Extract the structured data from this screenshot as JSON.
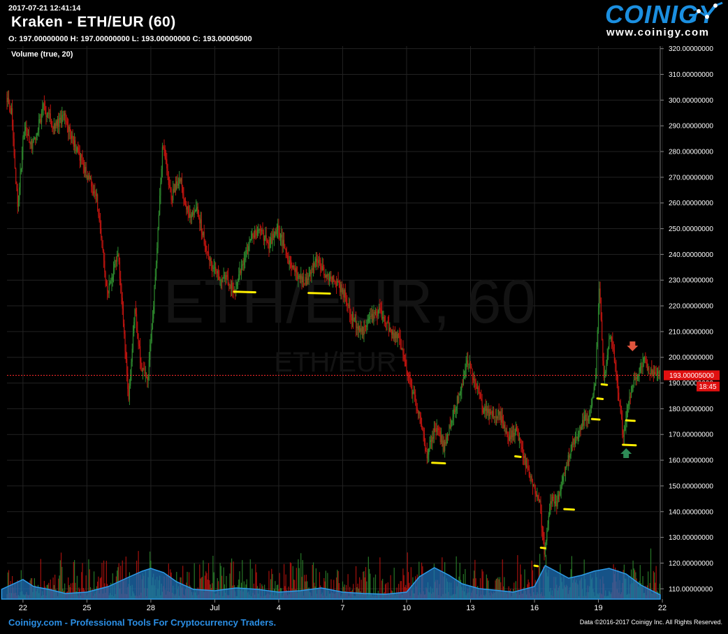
{
  "header": {
    "timestamp": "2017-07-21 12:41:14",
    "title": "Kraken - ETH/EUR (60)",
    "ohlc": "O: 197.00000000 H: 197.00000000 L: 193.00000000 C: 193.00005000",
    "volume_label": "Volume (true, 20)"
  },
  "logo": {
    "brand": "COINIGY",
    "url": "www.coinigy.com"
  },
  "footer": {
    "left": "Coinigy.com - Professional Tools For Cryptocurrency Traders.",
    "right": "Data ©2016-2017 Coinigy Inc. All Rights Reserved."
  },
  "watermark": {
    "main": "ETH/EUR, 60",
    "sub": "ETH/EUR"
  },
  "colors": {
    "up": "#2e8b2e",
    "down": "#c0140f",
    "accent": "#1b8fe0",
    "price_line": "#ff2a2a",
    "annotation": "#ffee00"
  },
  "chart_data": {
    "type": "candlestick",
    "title": "Kraken - ETH/EUR (60)",
    "ylim": [
      106,
      321
    ],
    "y_ticks": [
      "320.00000000",
      "310.00000000",
      "300.00000000",
      "290.00000000",
      "280.00000000",
      "270.00000000",
      "260.00000000",
      "250.00000000",
      "240.00000000",
      "230.00000000",
      "220.00000000",
      "210.00000000",
      "200.00000000",
      "190.00000000",
      "180.00000000",
      "170.00000000",
      "160.00000000",
      "150.00000000",
      "140.00000000",
      "130.00000000",
      "120.00000000",
      "110.00000000"
    ],
    "x_ticks": [
      {
        "label": "22",
        "day": 1
      },
      {
        "label": "25",
        "day": 4
      },
      {
        "label": "28",
        "day": 7
      },
      {
        "label": "Jul",
        "day": 10
      },
      {
        "label": "4",
        "day": 13
      },
      {
        "label": "7",
        "day": 16
      },
      {
        "label": "10",
        "day": 19
      },
      {
        "label": "13",
        "day": 22
      },
      {
        "label": "16",
        "day": 25
      },
      {
        "label": "19",
        "day": 28
      },
      {
        "label": "22",
        "day": 31
      }
    ],
    "x_range_days": [
      0.25,
      30.9
    ],
    "price_path": [
      [
        0.0,
        310
      ],
      [
        0.5,
        295
      ],
      [
        0.8,
        258
      ],
      [
        1.1,
        290
      ],
      [
        1.5,
        282
      ],
      [
        2.0,
        297
      ],
      [
        2.5,
        290
      ],
      [
        3.0,
        293
      ],
      [
        3.5,
        282
      ],
      [
        4.0,
        272
      ],
      [
        4.5,
        262
      ],
      [
        5.0,
        225
      ],
      [
        5.5,
        240
      ],
      [
        6.0,
        185
      ],
      [
        6.3,
        218
      ],
      [
        6.6,
        195
      ],
      [
        6.9,
        192
      ],
      [
        7.2,
        225
      ],
      [
        7.6,
        283
      ],
      [
        8.0,
        262
      ],
      [
        8.4,
        270
      ],
      [
        8.8,
        255
      ],
      [
        9.2,
        258
      ],
      [
        9.7,
        240
      ],
      [
        10.2,
        232
      ],
      [
        10.6,
        230
      ],
      [
        11.0,
        225
      ],
      [
        11.4,
        238
      ],
      [
        11.8,
        248
      ],
      [
        12.2,
        248
      ],
      [
        12.6,
        244
      ],
      [
        13.0,
        250
      ],
      [
        13.5,
        238
      ],
      [
        13.9,
        232
      ],
      [
        14.4,
        230
      ],
      [
        14.8,
        238
      ],
      [
        15.3,
        232
      ],
      [
        15.7,
        230
      ],
      [
        16.1,
        225
      ],
      [
        16.5,
        215
      ],
      [
        17.0,
        210
      ],
      [
        17.4,
        215
      ],
      [
        17.8,
        218
      ],
      [
        18.3,
        210
      ],
      [
        18.7,
        207
      ],
      [
        19.1,
        193
      ],
      [
        19.6,
        178
      ],
      [
        20.0,
        162
      ],
      [
        20.4,
        173
      ],
      [
        20.8,
        165
      ],
      [
        21.2,
        178
      ],
      [
        21.5,
        185
      ],
      [
        21.9,
        198
      ],
      [
        22.3,
        190
      ],
      [
        22.6,
        180
      ],
      [
        23.0,
        177
      ],
      [
        23.4,
        178
      ],
      [
        23.8,
        168
      ],
      [
        24.2,
        172
      ],
      [
        24.6,
        160
      ],
      [
        25.0,
        150
      ],
      [
        25.3,
        142
      ],
      [
        25.5,
        124
      ],
      [
        25.8,
        145
      ],
      [
        26.1,
        142
      ],
      [
        26.4,
        155
      ],
      [
        26.8,
        165
      ],
      [
        27.2,
        173
      ],
      [
        27.6,
        178
      ],
      [
        27.9,
        192
      ],
      [
        28.1,
        228
      ],
      [
        28.3,
        190
      ],
      [
        28.6,
        210
      ],
      [
        28.9,
        193
      ],
      [
        29.2,
        168
      ],
      [
        29.5,
        185
      ],
      [
        29.8,
        192
      ],
      [
        30.2,
        199
      ],
      [
        30.6,
        193
      ],
      [
        30.9,
        193
      ]
    ],
    "last_price": 193.00005,
    "last_price_label": "193.00005000",
    "countdown_label": "18:45",
    "volume_profile": [
      [
        0.0,
        14
      ],
      [
        1.0,
        28
      ],
      [
        1.5,
        18
      ],
      [
        2.2,
        14
      ],
      [
        3.0,
        8
      ],
      [
        4.0,
        10
      ],
      [
        5.0,
        18
      ],
      [
        6.0,
        32
      ],
      [
        6.6,
        40
      ],
      [
        7.0,
        44
      ],
      [
        7.6,
        38
      ],
      [
        8.2,
        25
      ],
      [
        9.0,
        14
      ],
      [
        10.0,
        12
      ],
      [
        11.0,
        16
      ],
      [
        12.0,
        14
      ],
      [
        13.0,
        10
      ],
      [
        14.0,
        12
      ],
      [
        15.0,
        16
      ],
      [
        16.0,
        10
      ],
      [
        17.0,
        8
      ],
      [
        18.0,
        7
      ],
      [
        19.0,
        10
      ],
      [
        19.6,
        32
      ],
      [
        20.3,
        45
      ],
      [
        21.0,
        34
      ],
      [
        21.6,
        22
      ],
      [
        22.4,
        15
      ],
      [
        23.4,
        12
      ],
      [
        24.0,
        10
      ],
      [
        25.0,
        18
      ],
      [
        25.5,
        48
      ],
      [
        26.0,
        40
      ],
      [
        26.6,
        30
      ],
      [
        27.2,
        34
      ],
      [
        27.8,
        40
      ],
      [
        28.5,
        44
      ],
      [
        29.3,
        36
      ],
      [
        30.0,
        20
      ],
      [
        30.9,
        6
      ]
    ],
    "annotations": {
      "support_lines": [
        {
          "day": 10.9,
          "day2": 11.9,
          "price": 225.5
        },
        {
          "day": 14.4,
          "day2": 15.4,
          "price": 225.0
        },
        {
          "day": 20.2,
          "day2": 20.8,
          "price": 159.0
        },
        {
          "day": 24.1,
          "day2": 24.35,
          "price": 161.5
        },
        {
          "day": 26.4,
          "day2": 26.85,
          "price": 141.0
        },
        {
          "day": 25.3,
          "day2": 25.5,
          "price": 126.0
        },
        {
          "day": 25.0,
          "day2": 25.15,
          "price": 119.0
        },
        {
          "day": 27.7,
          "day2": 28.05,
          "price": 176.0
        },
        {
          "day": 27.95,
          "day2": 28.2,
          "price": 184.0
        },
        {
          "day": 28.15,
          "day2": 28.4,
          "price": 189.5
        },
        {
          "day": 29.15,
          "day2": 29.75,
          "price": 166.0
        },
        {
          "day": 29.3,
          "day2": 29.7,
          "price": 175.5
        }
      ],
      "arrows": [
        {
          "direction": "down",
          "day": 29.6,
          "price": 204,
          "color": "#e0553d"
        },
        {
          "direction": "up",
          "day": 29.3,
          "price": 163,
          "color": "#2e8b57"
        }
      ]
    }
  }
}
